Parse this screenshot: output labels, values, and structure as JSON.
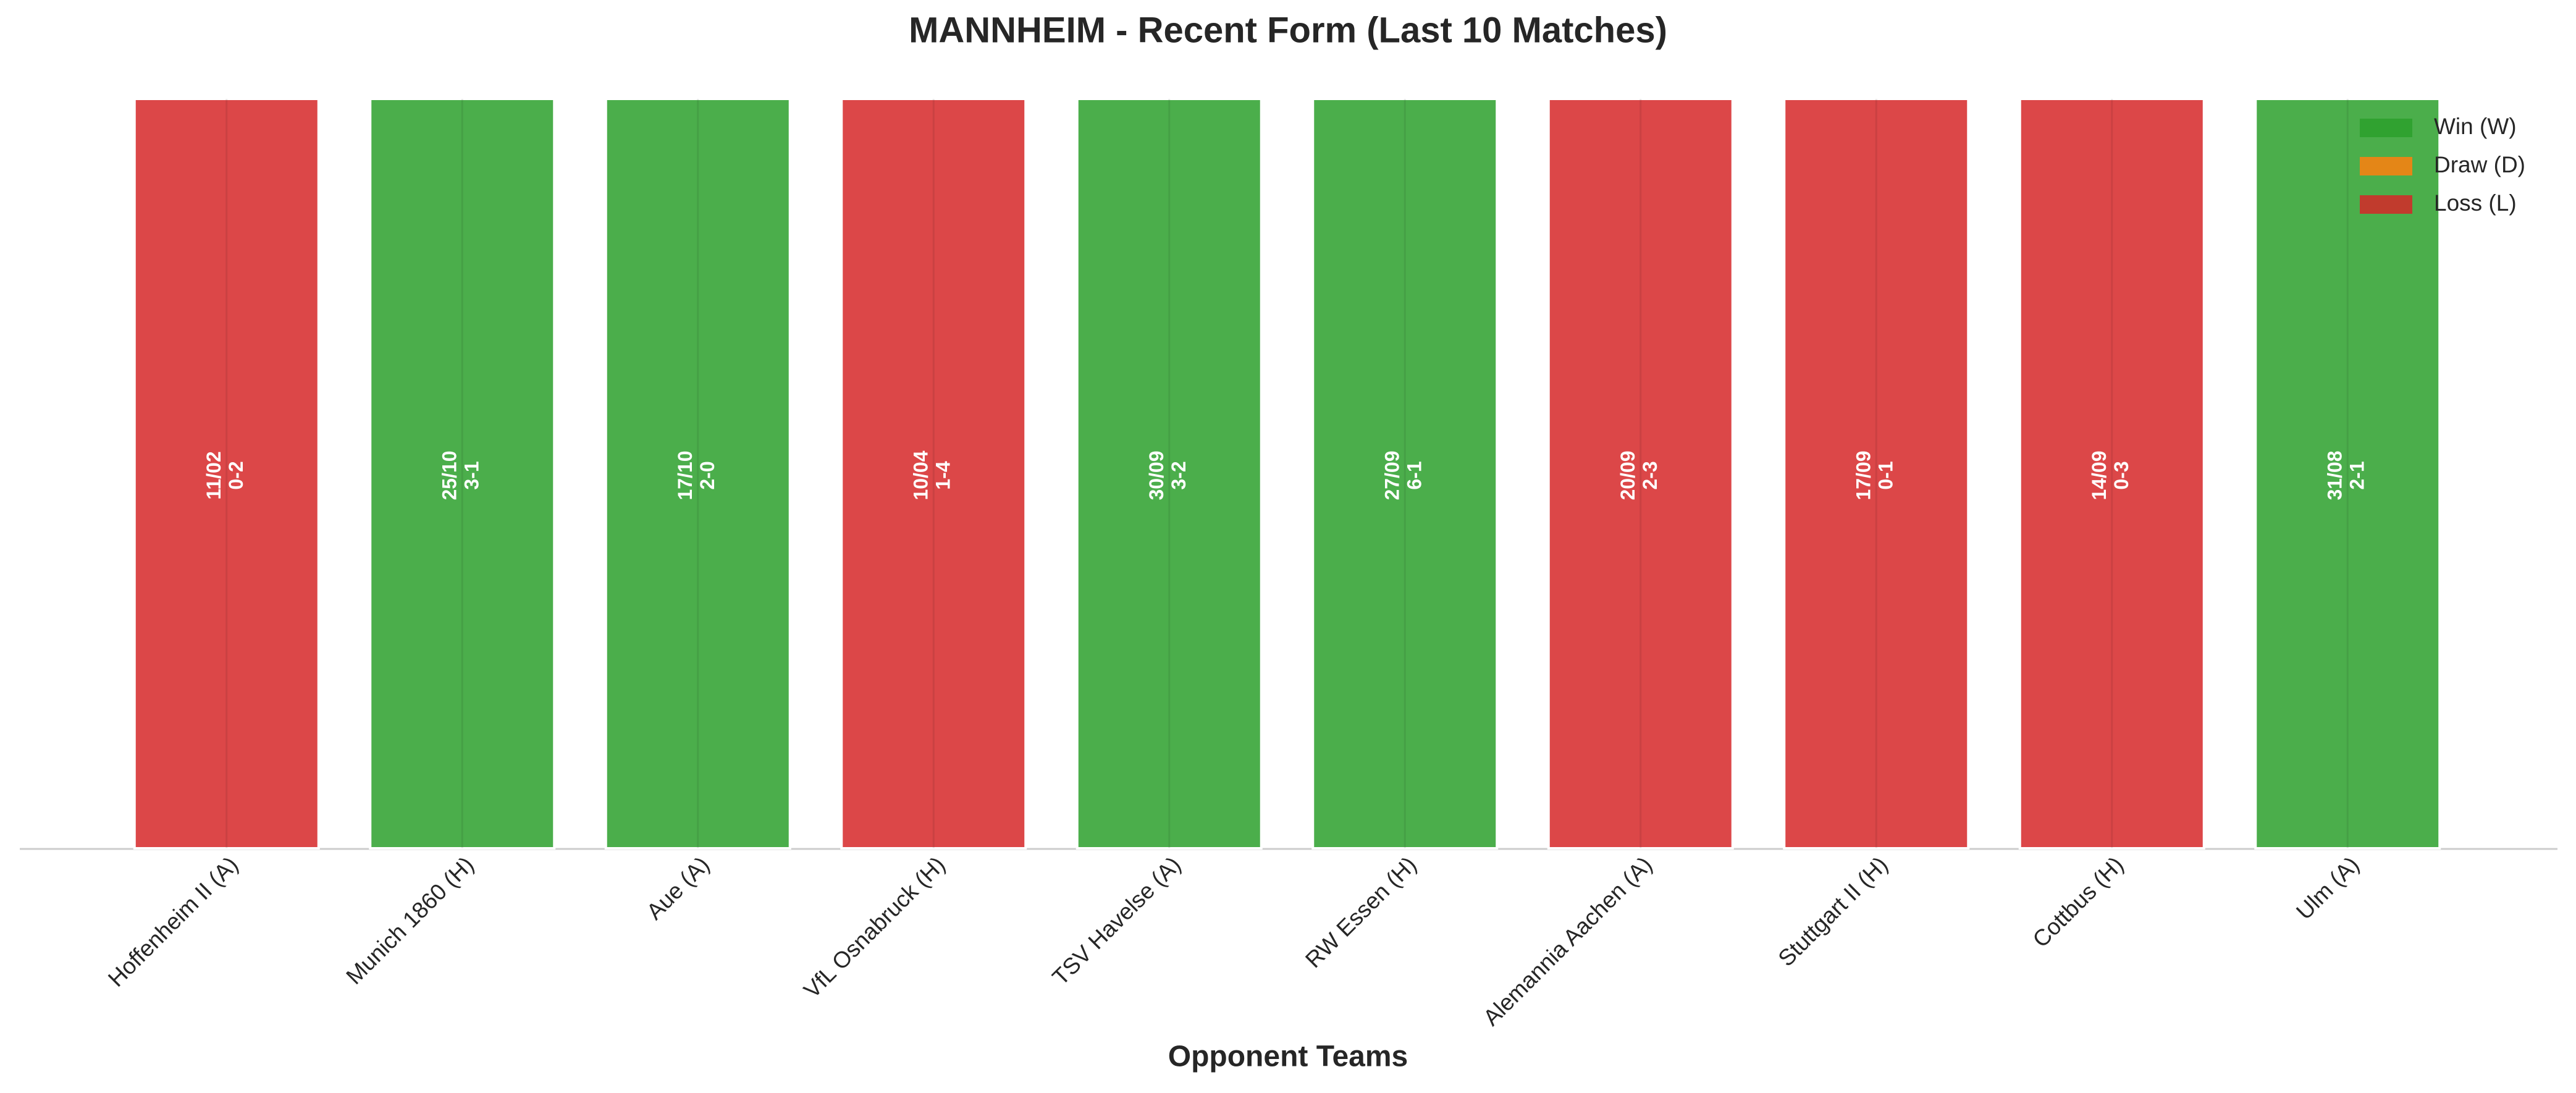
{
  "chart_data": {
    "type": "bar",
    "title": "MANNHEIM - Recent Form (Last 10 Matches)",
    "xlabel": "Opponent Teams",
    "categories": [
      "Hoffenheim II (A)",
      "Munich 1860 (H)",
      "Aue (A)",
      "VfL Osnabruck (H)",
      "TSV Havelse (A)",
      "RW Essen (H)",
      "Alemannia Aachen (A)",
      "Stuttgart II (H)",
      "Cottbus (H)",
      "Ulm (A)"
    ],
    "dates": [
      "11/02",
      "25/10",
      "17/10",
      "10/04",
      "30/09",
      "27/09",
      "20/09",
      "17/09",
      "14/09",
      "31/08"
    ],
    "scores": [
      "0-2",
      "3-1",
      "2-0",
      "1-4",
      "3-2",
      "6-1",
      "2-3",
      "0-1",
      "0-3",
      "2-1"
    ],
    "series": [
      {
        "name": "Win (W)",
        "color": "#2ca02c",
        "values": [
          null,
          1,
          1,
          null,
          1,
          1,
          null,
          null,
          null,
          1
        ]
      },
      {
        "name": "Draw (D)",
        "color": "#ff7f0e",
        "values": [
          null,
          null,
          null,
          null,
          null,
          null,
          null,
          null,
          null,
          null
        ]
      },
      {
        "name": "Loss (L)",
        "color": "#d62728",
        "values": [
          1,
          null,
          null,
          1,
          null,
          null,
          1,
          1,
          1,
          null
        ]
      }
    ],
    "ylim": [
      0,
      1
    ],
    "grid": true,
    "legend": "upper right"
  }
}
